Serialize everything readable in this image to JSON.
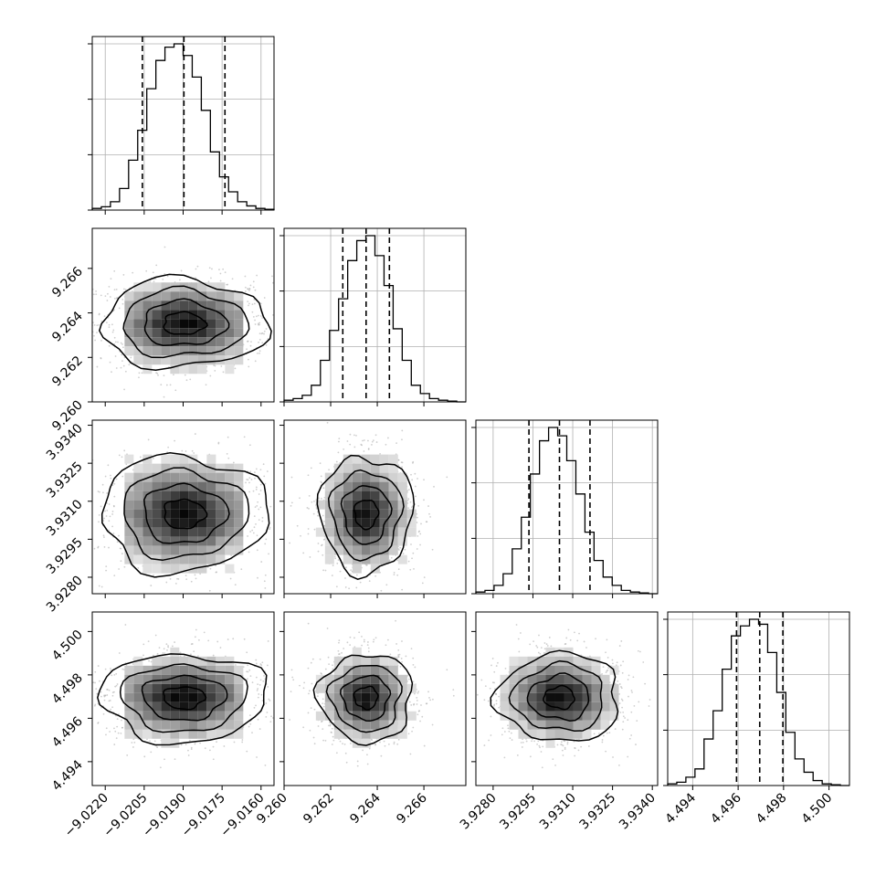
{
  "chart_data": {
    "type": "corner",
    "description_params": 4,
    "parameters": [
      {
        "index": 0,
        "median": -9.01897,
        "q16": -9.02057,
        "q84": -9.01739,
        "sigma": 0.0016,
        "range": [
          -9.0225,
          -9.0155
        ],
        "ticks": [
          -9.022,
          -9.0205,
          -9.019,
          -9.0175,
          -9.016
        ],
        "tick_labels": [
          "−9.0220",
          "−9.0205",
          "−9.0190",
          "−9.0175",
          "−9.0160"
        ]
      },
      {
        "index": 1,
        "median": 9.26352,
        "q16": 9.26252,
        "q84": 9.26452,
        "sigma": 0.001,
        "range": [
          9.26,
          9.2678
        ],
        "ticks": [
          9.26,
          9.262,
          9.264,
          9.266
        ],
        "tick_labels": [
          "9.260",
          "9.262",
          "9.264",
          "9.266"
        ]
      },
      {
        "index": 2,
        "median": 3.9305,
        "q16": 3.92935,
        "q84": 3.93165,
        "sigma": 0.00115,
        "range": [
          3.92735,
          3.9342
        ],
        "ticks": [
          3.928,
          3.9295,
          3.931,
          3.9325,
          3.934
        ],
        "tick_labels": [
          "3.9280",
          "3.9295",
          "3.9310",
          "3.9325",
          "3.9340"
        ]
      },
      {
        "index": 3,
        "median": 4.49695,
        "q16": 4.49593,
        "q84": 4.49797,
        "sigma": 0.00102,
        "range": [
          4.4929,
          4.5009
        ],
        "ticks": [
          4.494,
          4.496,
          4.498,
          4.5
        ],
        "tick_labels": [
          "4.494",
          "4.496",
          "4.498",
          "4.500"
        ]
      }
    ],
    "histograms": [
      {
        "param": 0,
        "bins": 20,
        "counts_normalized": [
          0.01,
          0.02,
          0.05,
          0.13,
          0.3,
          0.48,
          0.73,
          0.9,
          0.98,
          1.0,
          0.93,
          0.8,
          0.6,
          0.35,
          0.2,
          0.11,
          0.05,
          0.025,
          0.01,
          0.005
        ]
      },
      {
        "param": 1,
        "bins": 20,
        "counts_normalized": [
          0.01,
          0.02,
          0.04,
          0.1,
          0.25,
          0.43,
          0.62,
          0.85,
          0.97,
          1.0,
          0.88,
          0.7,
          0.44,
          0.25,
          0.1,
          0.05,
          0.02,
          0.01,
          0.005,
          0.0
        ]
      },
      {
        "param": 2,
        "bins": 20,
        "counts_normalized": [
          0.01,
          0.02,
          0.05,
          0.12,
          0.27,
          0.46,
          0.72,
          0.92,
          1.0,
          0.95,
          0.8,
          0.6,
          0.37,
          0.2,
          0.1,
          0.05,
          0.02,
          0.01,
          0.005,
          0.0
        ]
      },
      {
        "param": 3,
        "bins": 20,
        "counts_normalized": [
          0.01,
          0.02,
          0.05,
          0.1,
          0.28,
          0.45,
          0.7,
          0.9,
          0.96,
          1.0,
          0.97,
          0.8,
          0.56,
          0.32,
          0.16,
          0.08,
          0.03,
          0.01,
          0.005,
          0.0
        ]
      }
    ],
    "quantile_lines": "dashed lines at 16th, 50th, 84th percentiles",
    "contour_levels_sigma": [
      0.5,
      1.0,
      1.5,
      2.0
    ],
    "grid": true
  }
}
